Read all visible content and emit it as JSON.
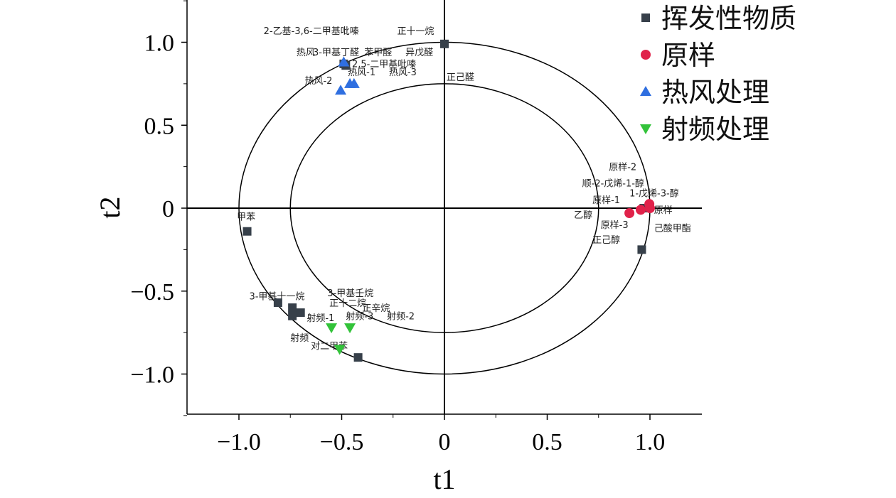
{
  "chart_data": {
    "type": "scatter",
    "title": "",
    "xlabel": "t1",
    "ylabel": "t2",
    "xlim": [
      -1.25,
      1.25
    ],
    "ylim": [
      -1.25,
      1.25
    ],
    "xticks": [
      -1.0,
      -0.5,
      0,
      0.5,
      1.0
    ],
    "xtick_labels": [
      "−1.0",
      "−0.5",
      "0",
      "0.5",
      "1.0"
    ],
    "yticks": [
      -1.0,
      -0.5,
      0,
      0.5,
      1.0
    ],
    "ytick_labels": [
      "−1.0",
      "−0.5",
      "0",
      "0.5",
      "1.0"
    ],
    "ellipses": [
      1.0,
      0.75
    ],
    "legend_position": "top-right",
    "series": [
      {
        "name": "挥发性物质",
        "marker": "square",
        "color": "#37404a",
        "points": [
          [
            0,
            0.99
          ],
          [
            -0.49,
            0.87
          ],
          [
            -0.48,
            0.86
          ],
          [
            -0.96,
            -0.14
          ],
          [
            0.96,
            -0.25
          ],
          [
            0.97,
            0
          ],
          [
            0.99,
            0
          ],
          [
            -0.81,
            -0.57
          ],
          [
            -0.74,
            -0.6
          ],
          [
            -0.74,
            -0.65
          ],
          [
            -0.7,
            -0.63
          ],
          [
            -0.42,
            -0.9
          ]
        ]
      },
      {
        "name": "原样",
        "marker": "circle",
        "color": "#e0224a",
        "points": [
          [
            0.9,
            -0.03
          ],
          [
            0.955,
            -0.01
          ],
          [
            0.997,
            0.025
          ],
          [
            1.0,
            0
          ]
        ]
      },
      {
        "name": "热风处理",
        "marker": "triangle-up",
        "color": "#2f6fe0",
        "points": [
          [
            -0.505,
            0.71
          ],
          [
            -0.46,
            0.75
          ],
          [
            -0.44,
            0.75
          ],
          [
            -0.49,
            0.88
          ]
        ]
      },
      {
        "name": "射频处理",
        "marker": "triangle-down",
        "color": "#33c33a",
        "points": [
          [
            -0.55,
            -0.72
          ],
          [
            -0.46,
            -0.72
          ],
          [
            -0.51,
            -0.85
          ]
        ]
      }
    ],
    "annotations": [
      {
        "text": "2-乙基-3,6-二甲基吡嗪",
        "x": -0.88,
        "y": 1.05
      },
      {
        "text": "正十一烷",
        "x": -0.23,
        "y": 1.05
      },
      {
        "text": "热风",
        "x": -0.72,
        "y": 0.92
      },
      {
        "text": "3-甲基丁醛",
        "x": -0.64,
        "y": 0.92
      },
      {
        "text": "苯甲醛",
        "x": -0.39,
        "y": 0.92
      },
      {
        "text": "异戊醛",
        "x": -0.19,
        "y": 0.92
      },
      {
        "text": "2,5-二甲基吡嗪",
        "x": -0.45,
        "y": 0.85
      },
      {
        "text": "热风-1",
        "x": -0.47,
        "y": 0.8
      },
      {
        "text": "热风-3",
        "x": -0.27,
        "y": 0.8
      },
      {
        "text": "正己醛",
        "x": 0.01,
        "y": 0.77
      },
      {
        "text": "热风-2",
        "x": -0.68,
        "y": 0.75
      },
      {
        "text": "原样-2",
        "x": 0.8,
        "y": 0.23
      },
      {
        "text": "顺-2-戊烯-1-醇",
        "x": 0.67,
        "y": 0.13
      },
      {
        "text": "1-戊烯-3-醇",
        "x": 0.9,
        "y": 0.07
      },
      {
        "text": "原样-1",
        "x": 0.72,
        "y": 0.03
      },
      {
        "text": "原样",
        "x": 1.02,
        "y": -0.03
      },
      {
        "text": "乙醇",
        "x": 0.63,
        "y": -0.06
      },
      {
        "text": "原样-3",
        "x": 0.76,
        "y": -0.12
      },
      {
        "text": "己酸甲酯",
        "x": 1.02,
        "y": -0.14
      },
      {
        "text": "正己醇",
        "x": 0.72,
        "y": -0.21
      },
      {
        "text": "甲苯",
        "x": -1.01,
        "y": -0.07
      },
      {
        "text": "3-甲基十一烷",
        "x": -0.95,
        "y": -0.55
      },
      {
        "text": "3-甲基壬烷",
        "x": -0.57,
        "y": -0.53
      },
      {
        "text": "正十二烷",
        "x": -0.56,
        "y": -0.59
      },
      {
        "text": "正辛烷",
        "x": -0.4,
        "y": -0.62
      },
      {
        "text": "射频-1",
        "x": -0.67,
        "y": -0.68
      },
      {
        "text": "射频-3",
        "x": -0.48,
        "y": -0.67
      },
      {
        "text": "射频-2",
        "x": -0.28,
        "y": -0.67
      },
      {
        "text": "射频",
        "x": -0.75,
        "y": -0.8
      },
      {
        "text": "对二甲苯",
        "x": -0.65,
        "y": -0.85
      }
    ]
  }
}
